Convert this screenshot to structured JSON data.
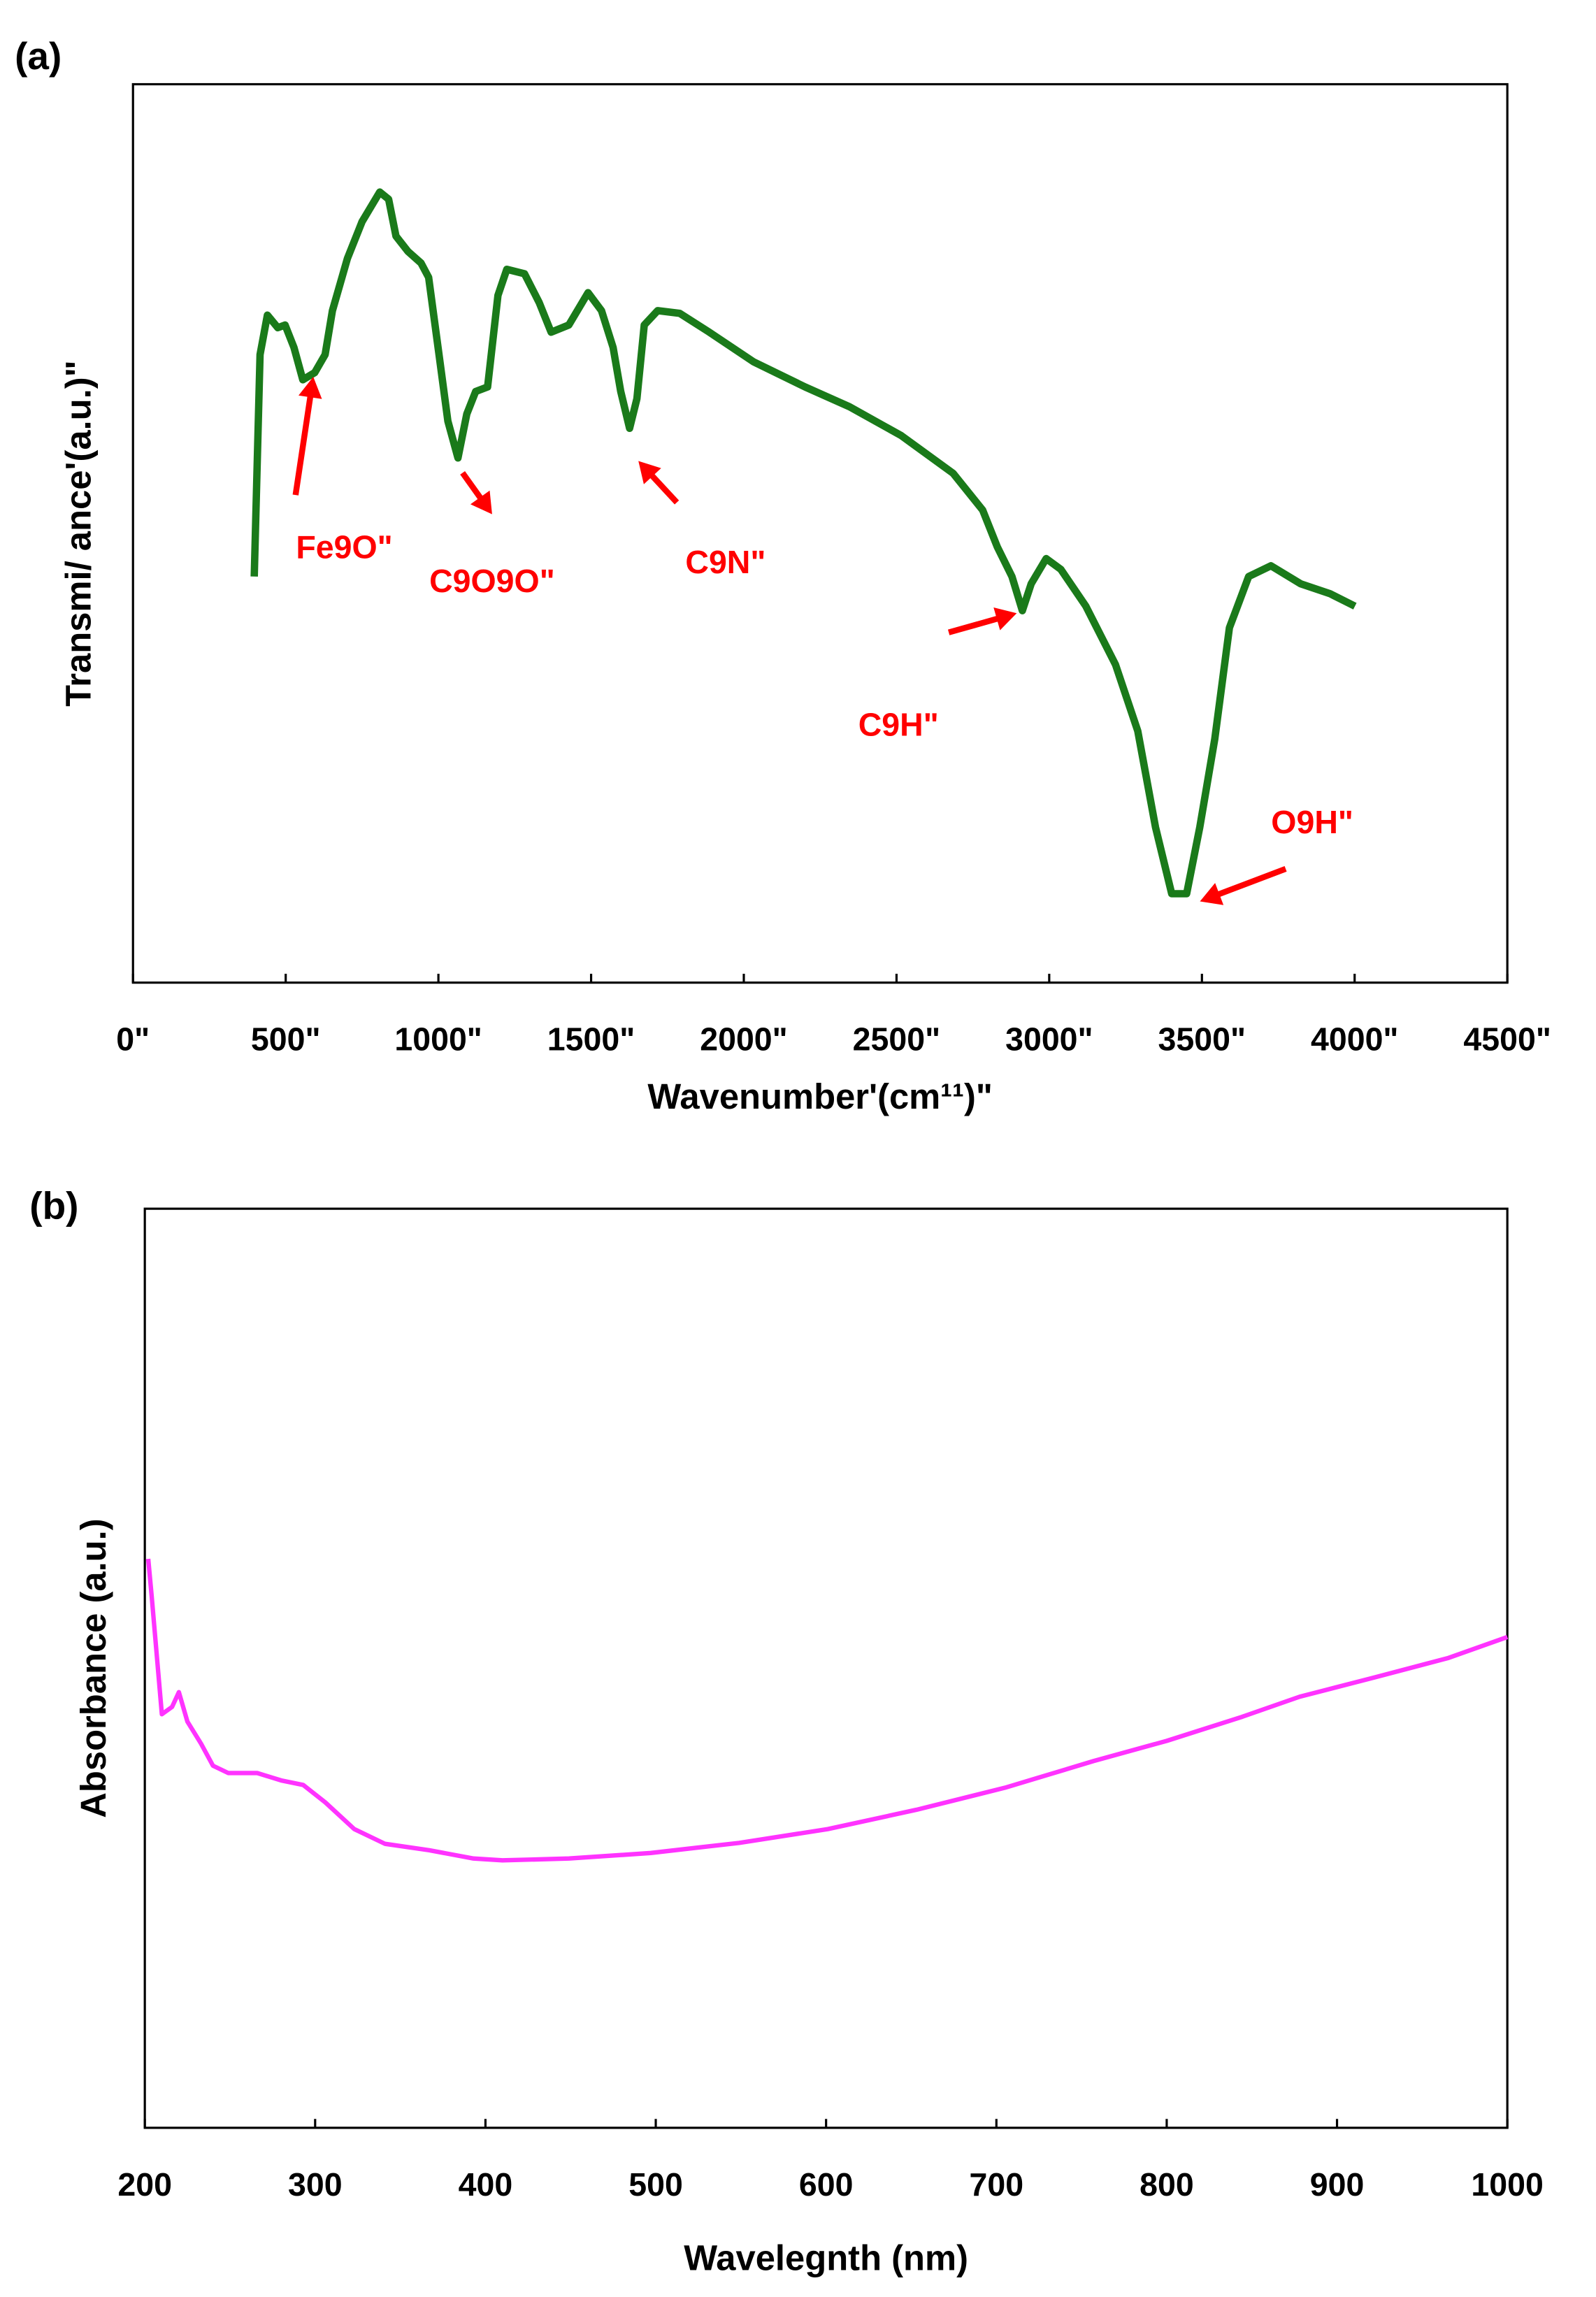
{
  "chart_data": [
    {
      "type": "line",
      "panel_label": "(a)",
      "x_label": "Wavenumber'(cm¹¹)\"",
      "y_label": "Transmi/ ance'(a.u.)\"",
      "xlim": [
        0,
        4500
      ],
      "xticks": [
        {
          "value": 0,
          "label": "0\""
        },
        {
          "value": 500,
          "label": "500\""
        },
        {
          "value": 1000,
          "label": "1000\""
        },
        {
          "value": 1500,
          "label": "1500\""
        },
        {
          "value": 2000,
          "label": "2000\""
        },
        {
          "value": 2500,
          "label": "2500\""
        },
        {
          "value": 3000,
          "label": "3000\""
        },
        {
          "value": 3500,
          "label": "3500\""
        },
        {
          "value": 4000,
          "label": "4000\""
        },
        {
          "value": 4500,
          "label": "4500\""
        }
      ],
      "ylim": [
        0,
        100
      ],
      "series": [
        {
          "color": "#1a7a1a",
          "x": [
            397,
            416,
            440,
            474,
            498,
            527,
            556,
            595,
            629,
            653,
            702,
            750,
            808,
            837,
            861,
            900,
            943,
            968,
            1002,
            1031,
            1064,
            1093,
            1122,
            1161,
            1195,
            1224,
            1282,
            1330,
            1369,
            1427,
            1490,
            1534,
            1572,
            1597,
            1626,
            1650,
            1674,
            1718,
            1790,
            1887,
            2032,
            2201,
            2346,
            2515,
            2685,
            2782,
            2830,
            2878,
            2912,
            2941,
            2990,
            3038,
            3120,
            3217,
            3290,
            3348,
            3401,
            3450,
            3493,
            3542,
            3590,
            3653,
            3726,
            3823,
            3919,
            4001
          ],
          "values": [
            45.2,
            69.9,
            74.3,
            72.9,
            73.2,
            70.7,
            67.1,
            67.9,
            69.9,
            74.8,
            80.6,
            84.7,
            88.0,
            87.2,
            83.1,
            81.4,
            80.1,
            78.5,
            69.9,
            62.5,
            58.4,
            63.3,
            65.8,
            66.3,
            76.5,
            79.4,
            78.9,
            75.7,
            72.4,
            73.2,
            76.8,
            74.8,
            70.7,
            65.8,
            61.7,
            65.0,
            73.2,
            74.8,
            74.5,
            72.4,
            69.1,
            66.3,
            64.1,
            60.9,
            56.7,
            52.6,
            48.5,
            45.2,
            41.4,
            44.4,
            47.2,
            46.0,
            41.9,
            35.4,
            28.0,
            17.3,
            9.9,
            9.9,
            17.3,
            27.1,
            39.5,
            45.2,
            46.4,
            44.4,
            43.3,
            41.9
          ]
        }
      ],
      "annotations": [
        "Fe9O\"",
        "C9O9O\"",
        "C9N\"",
        "C9H\"",
        "O9H\""
      ],
      "annotation_color": "#ff0000"
    },
    {
      "type": "line",
      "panel_label": "(b)",
      "x_label": "Wavelegnth (nm)",
      "y_label": "Absorbance (a.u.)",
      "xlim": [
        200,
        1000
      ],
      "xticks": [
        200,
        300,
        400,
        500,
        600,
        700,
        800,
        900,
        1000
      ],
      "ylim": [
        0,
        100
      ],
      "series": [
        {
          "color": "#ff33ff",
          "x": [
            202,
            204,
            210,
            216,
            220,
            225,
            233,
            240,
            249,
            266,
            280,
            293,
            306,
            323,
            341,
            367,
            393,
            410,
            449,
            497,
            549,
            601,
            653,
            705,
            757,
            800,
            844,
            878,
            922,
            965,
            1000
          ],
          "values": [
            61.9,
            57.9,
            45.0,
            45.8,
            47.4,
            44.2,
            41.8,
            39.4,
            38.6,
            38.6,
            37.8,
            37.3,
            35.4,
            32.5,
            30.9,
            30.2,
            29.3,
            29.1,
            29.3,
            29.9,
            31.0,
            32.5,
            34.6,
            37.0,
            39.9,
            42.1,
            44.7,
            46.9,
            49.0,
            51.1,
            53.4
          ]
        }
      ]
    }
  ]
}
